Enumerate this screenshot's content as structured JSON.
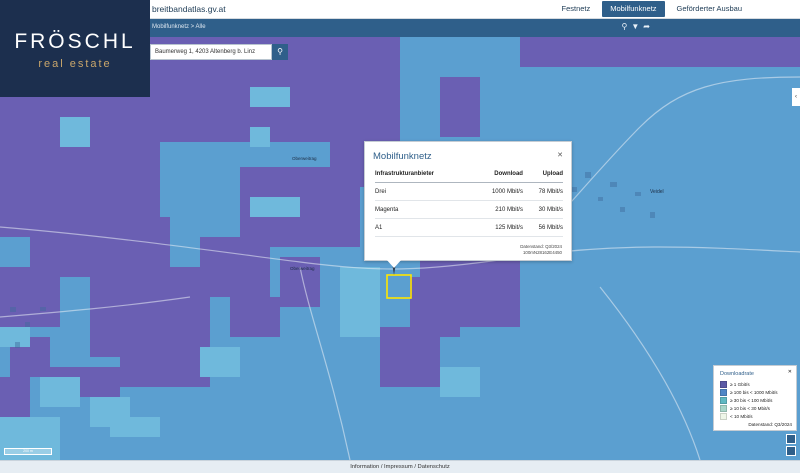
{
  "header": {
    "site_title": "breitbandatlas.gv.at",
    "nav": [
      {
        "label": "Festnetz",
        "active": false
      },
      {
        "label": "Mobilfunknetz",
        "active": true
      },
      {
        "label": "Geförderter Ausbau",
        "active": false
      }
    ],
    "icons": [
      "search-icon",
      "filter-icon",
      "share-icon"
    ]
  },
  "breadcrumb": "Mobilfunknetz  >  Alle",
  "search": {
    "value": "Baumerweg 1, 4203 Altenberg b. Linz"
  },
  "logo": {
    "main": "FRÖSCHL",
    "sub": "real estate"
  },
  "map_labels": [
    "Oberweitrag",
    "Oberweitrag",
    "Veidel"
  ],
  "popup": {
    "title": "Mobilfunknetz",
    "headers": {
      "provider": "Infrastrukturanbieter",
      "download": "Download",
      "upload": "Upload"
    },
    "rows": [
      {
        "provider": "Drei",
        "download": "1000 Mbit/s",
        "upload": "78 Mbit/s"
      },
      {
        "provider": "Magenta",
        "download": "210 Mbit/s",
        "upload": "30 Mbit/s"
      },
      {
        "provider": "A1",
        "download": "125 Mbit/s",
        "upload": "56 Mbit/s"
      }
    ],
    "footer_date": "Datenstand: Q3/2024",
    "footer_id": "100mN28162E4450"
  },
  "legend": {
    "title": "Downloadrate",
    "items": [
      {
        "label": "≥ 1 Gbit/s",
        "color": "#5b5aa6"
      },
      {
        "label": "≥ 100 bis < 1000 Mbit/s",
        "color": "#4f86c6"
      },
      {
        "label": "≥ 30 bis < 100 Mbit/s",
        "color": "#5fb8c2"
      },
      {
        "label": "≥ 10 bis < 30 Mbit/s",
        "color": "#a8d6c9"
      },
      {
        "label": "< 10 Mbit/s",
        "color": "#eef6e8"
      }
    ],
    "date": "Datenstand: Q3/2024"
  },
  "footer": "Information  /  Impressum  /  Datenschutz",
  "scale": "200 m",
  "colors": {
    "purple": "#6a5fb3",
    "blue": "#5b9fd0",
    "lightblue": "#6fb9dc",
    "accent": "#2f5f8a",
    "highlight": "#ffe600"
  }
}
